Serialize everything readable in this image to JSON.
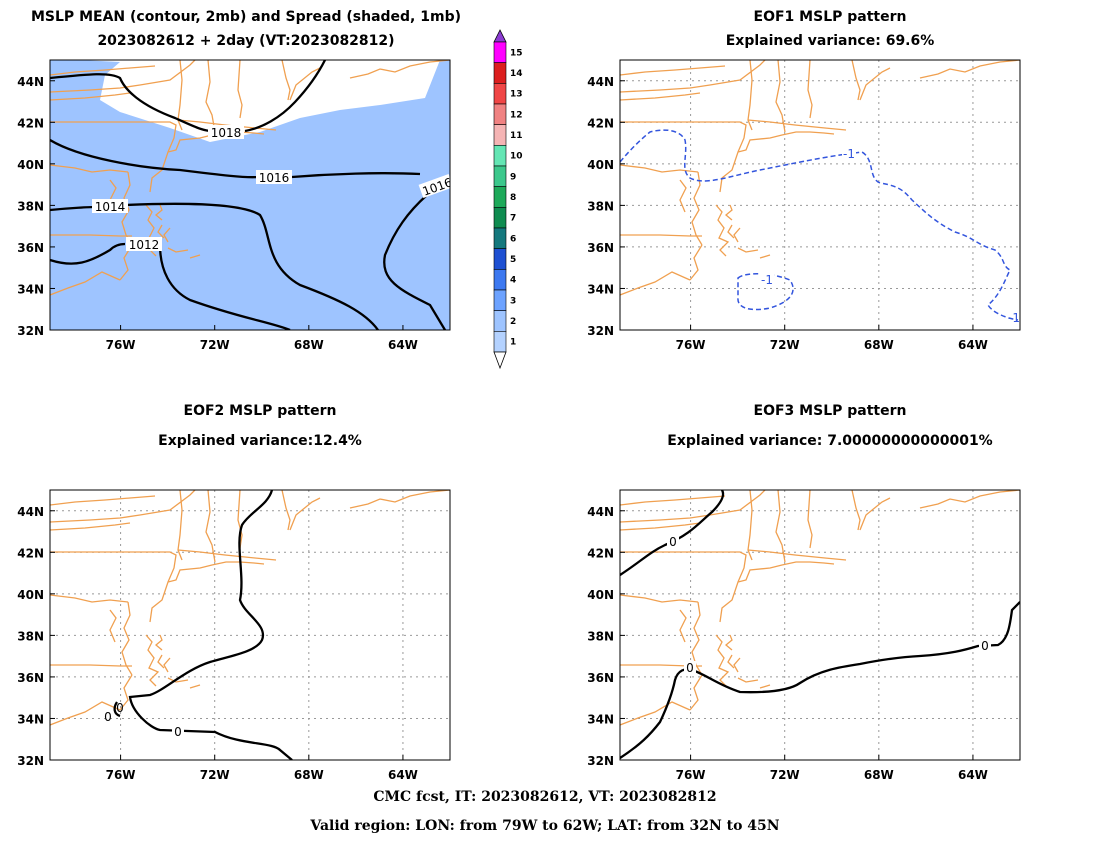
{
  "titles": {
    "p1_line1": "MSLP MEAN (contour, 2mb) and Spread (shaded, 1mb)",
    "p1_line2": "2023082612 + 2day (VT:2023082812)",
    "p2_line1": "EOF1 MSLP pattern",
    "p2_line2": "Explained variance: 69.6%",
    "p3_line1": "EOF2 MSLP pattern",
    "p3_line2": "Explained variance:12.4%",
    "p4_line1": "EOF3 MSLP pattern",
    "p4_line2": "Explained variance: 7.00000000000001%"
  },
  "footer": {
    "line1": "CMC fcst, IT: 2023082612, VT: 2023082812",
    "line2": "Valid region: LON: from 79W to 62W; LAT: from 32N to 45N"
  },
  "axes": {
    "lon_ticks": [
      "76W",
      "72W",
      "68W",
      "64W"
    ],
    "lat_ticks": [
      "44N",
      "42N",
      "40N",
      "38N",
      "36N",
      "34N",
      "32N"
    ]
  },
  "colors": {
    "coast": "#f0a050",
    "shade": "#9ec4ff",
    "contour": "#000000",
    "eof1_contour": "#3355dd"
  },
  "colorbar": {
    "labels": [
      "1",
      "2",
      "3",
      "4",
      "5",
      "6",
      "7",
      "8",
      "9",
      "10",
      "11",
      "12",
      "13",
      "14",
      "15"
    ],
    "colors": [
      "#b4d2ff",
      "#9ec4ff",
      "#6ca2ff",
      "#3c78f0",
      "#1e50d2",
      "#14787d",
      "#0f8c50",
      "#1eaa5a",
      "#3cc88c",
      "#64e6b4",
      "#f5b4b4",
      "#f08282",
      "#f04646",
      "#dc1e1e",
      "#ff00ff"
    ],
    "top_color": "#8c3cd2"
  },
  "chart_data": [
    {
      "type": "contour",
      "title": "MSLP MEAN (contour, 2mb) and Spread (shaded, 1mb)",
      "subtitle": "2023082612 + 2day (VT:2023082812)",
      "xlim": [
        "79W",
        "62W"
      ],
      "ylim": [
        "32N",
        "45N"
      ],
      "contour_labels": [
        "1012",
        "1014",
        "1016",
        "1016",
        "1018"
      ],
      "shaded_levels": [
        "1",
        "2",
        "3",
        "4",
        "5",
        "6",
        "7",
        "8",
        "9",
        "10",
        "11",
        "12",
        "13",
        "14",
        "15"
      ]
    },
    {
      "type": "contour",
      "title": "EOF1 MSLP pattern",
      "subtitle": "Explained variance: 69.6%",
      "xlim": [
        "79W",
        "62W"
      ],
      "ylim": [
        "32N",
        "45N"
      ],
      "contour_labels": [
        "-1",
        "-1",
        "-1"
      ]
    },
    {
      "type": "contour",
      "title": "EOF2 MSLP pattern",
      "subtitle": "Explained variance:12.4%",
      "xlim": [
        "79W",
        "62W"
      ],
      "ylim": [
        "32N",
        "45N"
      ],
      "contour_labels": [
        "0",
        "0",
        "0"
      ]
    },
    {
      "type": "contour",
      "title": "EOF3 MSLP pattern",
      "subtitle": "Explained variance: 7.00000000000001%",
      "xlim": [
        "79W",
        "62W"
      ],
      "ylim": [
        "32N",
        "45N"
      ],
      "contour_labels": [
        "0",
        "0",
        "0"
      ]
    }
  ]
}
